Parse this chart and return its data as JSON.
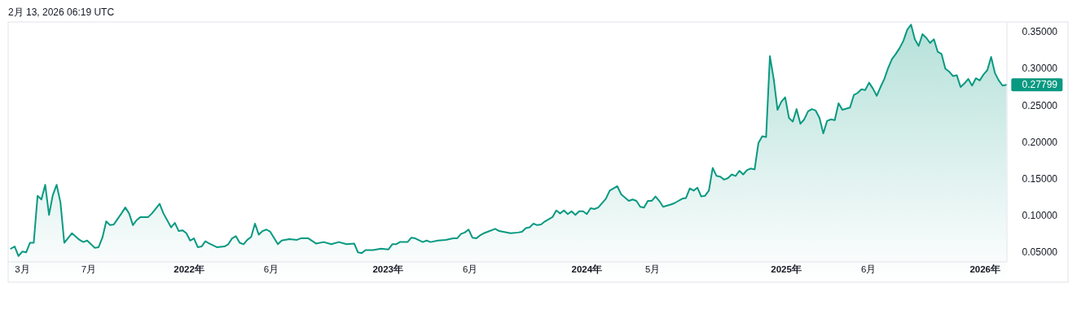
{
  "chart_data": {
    "type": "area",
    "title": "2月 13, 2026 06:19 UTC",
    "x": [
      "2021-02-08",
      "2021-02-15",
      "2021-02-22",
      "2021-03-01",
      "2021-03-08",
      "2021-03-15",
      "2021-03-22",
      "2021-03-29",
      "2021-04-05",
      "2021-04-12",
      "2021-04-19",
      "2021-04-26",
      "2021-05-03",
      "2021-05-10",
      "2021-05-17",
      "2021-05-31",
      "2021-06-14",
      "2021-06-21",
      "2021-06-28",
      "2021-07-12",
      "2021-07-19",
      "2021-07-26",
      "2021-08-02",
      "2021-08-09",
      "2021-08-16",
      "2021-08-30",
      "2021-09-06",
      "2021-09-13",
      "2021-09-20",
      "2021-09-27",
      "2021-10-04",
      "2021-10-18",
      "2021-10-25",
      "2021-11-08",
      "2021-11-15",
      "2021-11-29",
      "2021-12-06",
      "2021-12-13",
      "2021-12-20",
      "2021-12-27",
      "2022-01-03",
      "2022-01-10",
      "2022-01-17",
      "2022-01-24",
      "2022-01-31",
      "2022-02-07",
      "2022-02-21",
      "2022-03-07",
      "2022-03-14",
      "2022-03-21",
      "2022-03-28",
      "2022-04-04",
      "2022-04-11",
      "2022-04-18",
      "2022-04-25",
      "2022-05-02",
      "2022-05-09",
      "2022-05-16",
      "2022-05-23",
      "2022-05-30",
      "2022-06-13",
      "2022-06-20",
      "2022-07-04",
      "2022-07-18",
      "2022-07-25",
      "2022-08-08",
      "2022-08-22",
      "2022-09-05",
      "2022-09-19",
      "2022-10-03",
      "2022-10-17",
      "2022-10-31",
      "2022-11-07",
      "2022-11-14",
      "2022-11-21",
      "2022-12-05",
      "2022-12-19",
      "2023-01-02",
      "2023-01-09",
      "2023-01-16",
      "2023-01-23",
      "2023-02-06",
      "2023-02-13",
      "2023-02-20",
      "2023-03-06",
      "2023-03-13",
      "2023-03-20",
      "2023-04-03",
      "2023-04-17",
      "2023-05-01",
      "2023-05-08",
      "2023-05-15",
      "2023-05-22",
      "2023-05-29",
      "2023-06-05",
      "2023-06-12",
      "2023-06-19",
      "2023-06-26",
      "2023-07-03",
      "2023-07-17",
      "2023-07-24",
      "2023-08-14",
      "2023-08-28",
      "2023-09-04",
      "2023-09-11",
      "2023-09-18",
      "2023-09-25",
      "2023-10-02",
      "2023-10-09",
      "2023-10-16",
      "2023-10-30",
      "2023-11-06",
      "2023-11-13",
      "2023-11-20",
      "2023-11-27",
      "2023-12-04",
      "2023-12-11",
      "2023-12-18",
      "2023-12-25",
      "2024-01-01",
      "2024-01-08",
      "2024-01-15",
      "2024-01-22",
      "2024-02-05",
      "2024-02-12",
      "2024-02-26",
      "2024-03-04",
      "2024-03-18",
      "2024-03-25",
      "2024-04-01",
      "2024-04-08",
      "2024-04-15",
      "2024-04-22",
      "2024-04-29",
      "2024-05-06",
      "2024-05-13",
      "2024-05-20",
      "2024-06-03",
      "2024-06-10",
      "2024-06-24",
      "2024-07-01",
      "2024-07-08",
      "2024-07-15",
      "2024-07-22",
      "2024-07-29",
      "2024-08-05",
      "2024-08-12",
      "2024-08-19",
      "2024-08-26",
      "2024-09-02",
      "2024-09-09",
      "2024-09-16",
      "2024-09-23",
      "2024-09-30",
      "2024-10-07",
      "2024-10-14",
      "2024-10-21",
      "2024-10-28",
      "2024-11-04",
      "2024-11-11",
      "2024-11-18",
      "2024-11-25",
      "2024-12-02",
      "2024-12-09",
      "2024-12-16",
      "2024-12-23",
      "2024-12-30",
      "2025-01-06",
      "2025-01-13",
      "2025-01-20",
      "2025-01-27",
      "2025-02-03",
      "2025-02-10",
      "2025-02-17",
      "2025-02-24",
      "2025-03-03",
      "2025-03-10",
      "2025-03-17",
      "2025-03-24",
      "2025-03-31",
      "2025-04-07",
      "2025-04-14",
      "2025-04-28",
      "2025-05-05",
      "2025-05-12",
      "2025-05-19",
      "2025-05-26",
      "2025-06-02",
      "2025-06-09",
      "2025-06-16",
      "2025-06-23",
      "2025-06-30",
      "2025-07-07",
      "2025-07-14",
      "2025-07-21",
      "2025-07-28",
      "2025-08-04",
      "2025-08-11",
      "2025-08-18",
      "2025-08-25",
      "2025-09-01",
      "2025-09-08",
      "2025-09-15",
      "2025-09-22",
      "2025-09-29",
      "2025-10-06",
      "2025-10-13",
      "2025-10-20",
      "2025-10-27",
      "2025-11-03",
      "2025-11-10",
      "2025-11-17",
      "2025-11-24",
      "2025-12-01",
      "2025-12-08",
      "2025-12-15",
      "2025-12-22",
      "2025-12-29",
      "2026-01-05",
      "2026-01-12",
      "2026-01-19",
      "2026-01-26",
      "2026-02-02",
      "2026-02-09"
    ],
    "series": [
      {
        "color": "#089981",
        "values": [
          0.055,
          0.058,
          0.045,
          0.051,
          0.05,
          0.063,
          0.063,
          0.127,
          0.122,
          0.142,
          0.101,
          0.128,
          0.142,
          0.118,
          0.063,
          0.076,
          0.067,
          0.064,
          0.066,
          0.056,
          0.057,
          0.07,
          0.092,
          0.087,
          0.088,
          0.103,
          0.111,
          0.103,
          0.087,
          0.094,
          0.098,
          0.098,
          0.103,
          0.116,
          0.103,
          0.084,
          0.09,
          0.079,
          0.08,
          0.076,
          0.066,
          0.069,
          0.057,
          0.058,
          0.065,
          0.062,
          0.057,
          0.058,
          0.061,
          0.069,
          0.072,
          0.063,
          0.061,
          0.067,
          0.071,
          0.089,
          0.074,
          0.079,
          0.081,
          0.078,
          0.061,
          0.066,
          0.068,
          0.067,
          0.069,
          0.069,
          0.062,
          0.064,
          0.061,
          0.064,
          0.061,
          0.062,
          0.05,
          0.049,
          0.053,
          0.053,
          0.055,
          0.054,
          0.061,
          0.061,
          0.064,
          0.064,
          0.07,
          0.069,
          0.064,
          0.066,
          0.064,
          0.066,
          0.067,
          0.069,
          0.069,
          0.075,
          0.077,
          0.081,
          0.07,
          0.069,
          0.073,
          0.076,
          0.078,
          0.082,
          0.079,
          0.076,
          0.077,
          0.078,
          0.083,
          0.084,
          0.089,
          0.087,
          0.088,
          0.092,
          0.098,
          0.107,
          0.103,
          0.107,
          0.102,
          0.106,
          0.101,
          0.106,
          0.106,
          0.102,
          0.11,
          0.109,
          0.111,
          0.123,
          0.134,
          0.14,
          0.129,
          0.12,
          0.122,
          0.12,
          0.112,
          0.111,
          0.12,
          0.12,
          0.126,
          0.12,
          0.112,
          0.115,
          0.117,
          0.123,
          0.124,
          0.137,
          0.134,
          0.138,
          0.126,
          0.127,
          0.134,
          0.165,
          0.154,
          0.153,
          0.149,
          0.151,
          0.156,
          0.154,
          0.161,
          0.156,
          0.162,
          0.164,
          0.163,
          0.199,
          0.208,
          0.207,
          0.317,
          0.286,
          0.244,
          0.255,
          0.261,
          0.233,
          0.228,
          0.245,
          0.225,
          0.231,
          0.242,
          0.245,
          0.243,
          0.233,
          0.212,
          0.229,
          0.231,
          0.23,
          0.253,
          0.244,
          0.247,
          0.264,
          0.267,
          0.272,
          0.271,
          0.281,
          0.273,
          0.263,
          0.275,
          0.286,
          0.301,
          0.313,
          0.32,
          0.328,
          0.338,
          0.353,
          0.36,
          0.34,
          0.331,
          0.347,
          0.342,
          0.335,
          0.34,
          0.323,
          0.32,
          0.3,
          0.296,
          0.29,
          0.291,
          0.275,
          0.28,
          0.286,
          0.277,
          0.287,
          0.284,
          0.292,
          0.298,
          0.316,
          0.294,
          0.284,
          0.277,
          0.27799
        ]
      }
    ],
    "xlim": [
      "2021-02-03",
      "2026-02-10"
    ],
    "xticks": [
      {
        "value": "2021-03-01",
        "label": "3月"
      },
      {
        "value": "2021-07-01",
        "label": "7月"
      },
      {
        "value": "2022-01-01",
        "label": "2022年"
      },
      {
        "value": "2022-06-01",
        "label": "6月"
      },
      {
        "value": "2023-01-01",
        "label": "2023年"
      },
      {
        "value": "2023-06-01",
        "label": "6月"
      },
      {
        "value": "2024-01-01",
        "label": "2024年"
      },
      {
        "value": "2024-05-01",
        "label": "5月"
      },
      {
        "value": "2025-01-01",
        "label": "2025年"
      },
      {
        "value": "2025-06-01",
        "label": "6月"
      },
      {
        "value": "2026-01-01",
        "label": "2026年"
      }
    ],
    "ylim": [
      0.037,
      0.3625
    ],
    "yticks": [
      {
        "value": 0.05,
        "label": "0.05000"
      },
      {
        "value": 0.1,
        "label": "0.10000"
      },
      {
        "value": 0.15,
        "label": "0.15000"
      },
      {
        "value": 0.2,
        "label": "0.20000"
      },
      {
        "value": 0.25,
        "label": "0.25000"
      },
      {
        "value": 0.3,
        "label": "0.30000"
      },
      {
        "value": 0.35,
        "label": "0.35000"
      }
    ],
    "annotations": [
      {
        "text": "0.27799",
        "x": "2026-02-09",
        "y": 0.27799
      }
    ]
  }
}
